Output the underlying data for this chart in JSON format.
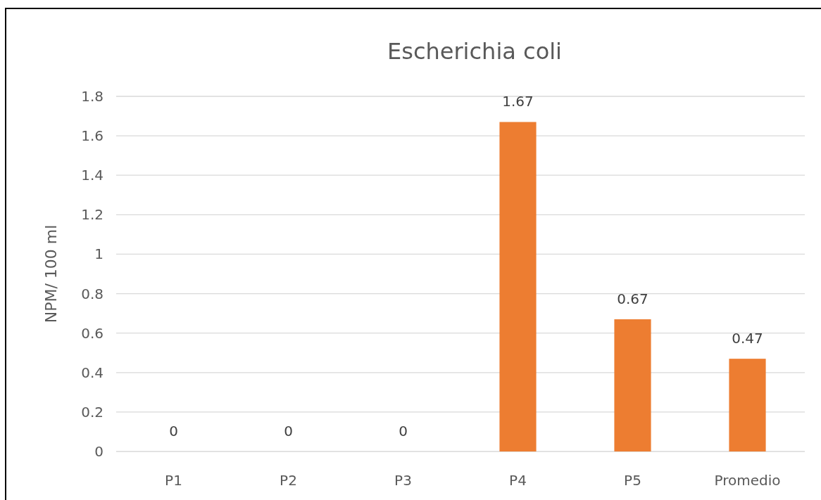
{
  "chart_data": {
    "type": "bar",
    "title": "Escherichia coli",
    "ylabel": "NPM/ 100 ml",
    "categories": [
      "P1",
      "P2",
      "P3",
      "P4",
      "P5",
      "Promedio"
    ],
    "values": [
      0,
      0,
      0,
      1.67,
      0.67,
      0.47
    ],
    "color": "#ed7d31",
    "ylim": [
      0,
      1.8
    ],
    "yticks": [
      0,
      0.2,
      0.4,
      0.6,
      0.8,
      1,
      1.2,
      1.4,
      1.6,
      1.8
    ],
    "grid": "y",
    "data_labels": true
  }
}
